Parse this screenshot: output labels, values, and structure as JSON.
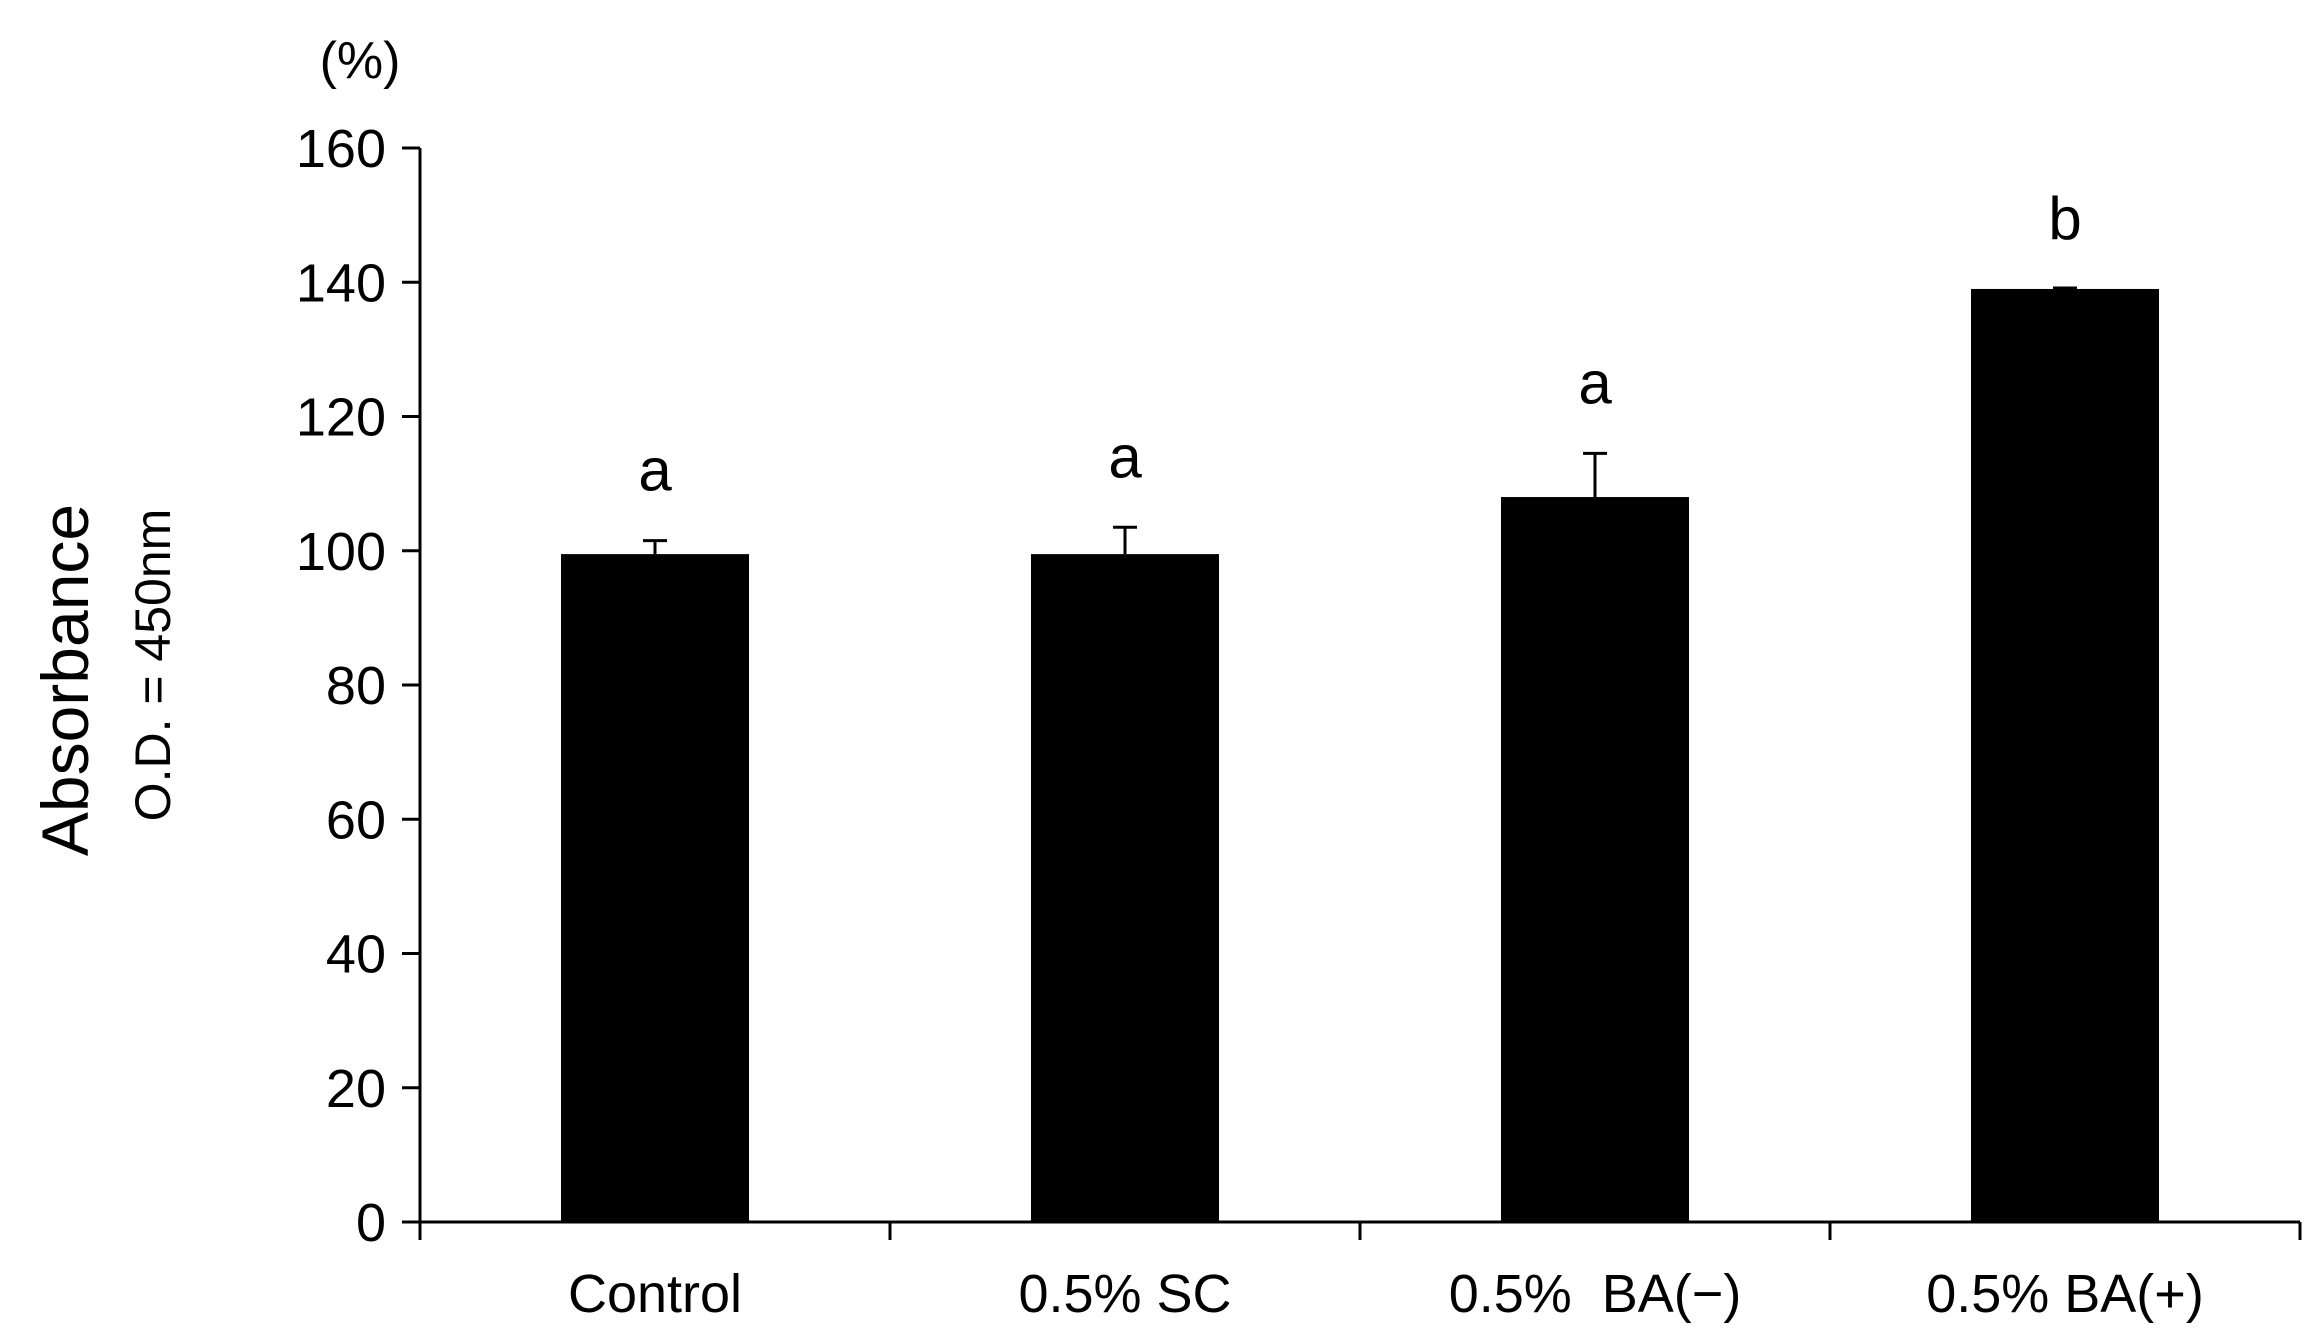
{
  "chart_data": {
    "type": "bar",
    "categories": [
      "Control",
      "0.5% SC",
      "0.5%  BA(−)",
      "0.5% BA(+)"
    ],
    "values": [
      99.5,
      99.5,
      108,
      139
    ],
    "error_bars": [
      2,
      4,
      6.5,
      0
    ],
    "significance_letters": [
      "a",
      "a",
      "a",
      "b"
    ],
    "ylabel": "Absorbance",
    "ylabel_sub": "O.D. = 450nm",
    "y_unit": "(%)",
    "ylim": [
      0,
      160
    ],
    "yticks": [
      0,
      20,
      40,
      60,
      80,
      100,
      120,
      140,
      160
    ],
    "grid": false,
    "bar_color": "#000000"
  }
}
